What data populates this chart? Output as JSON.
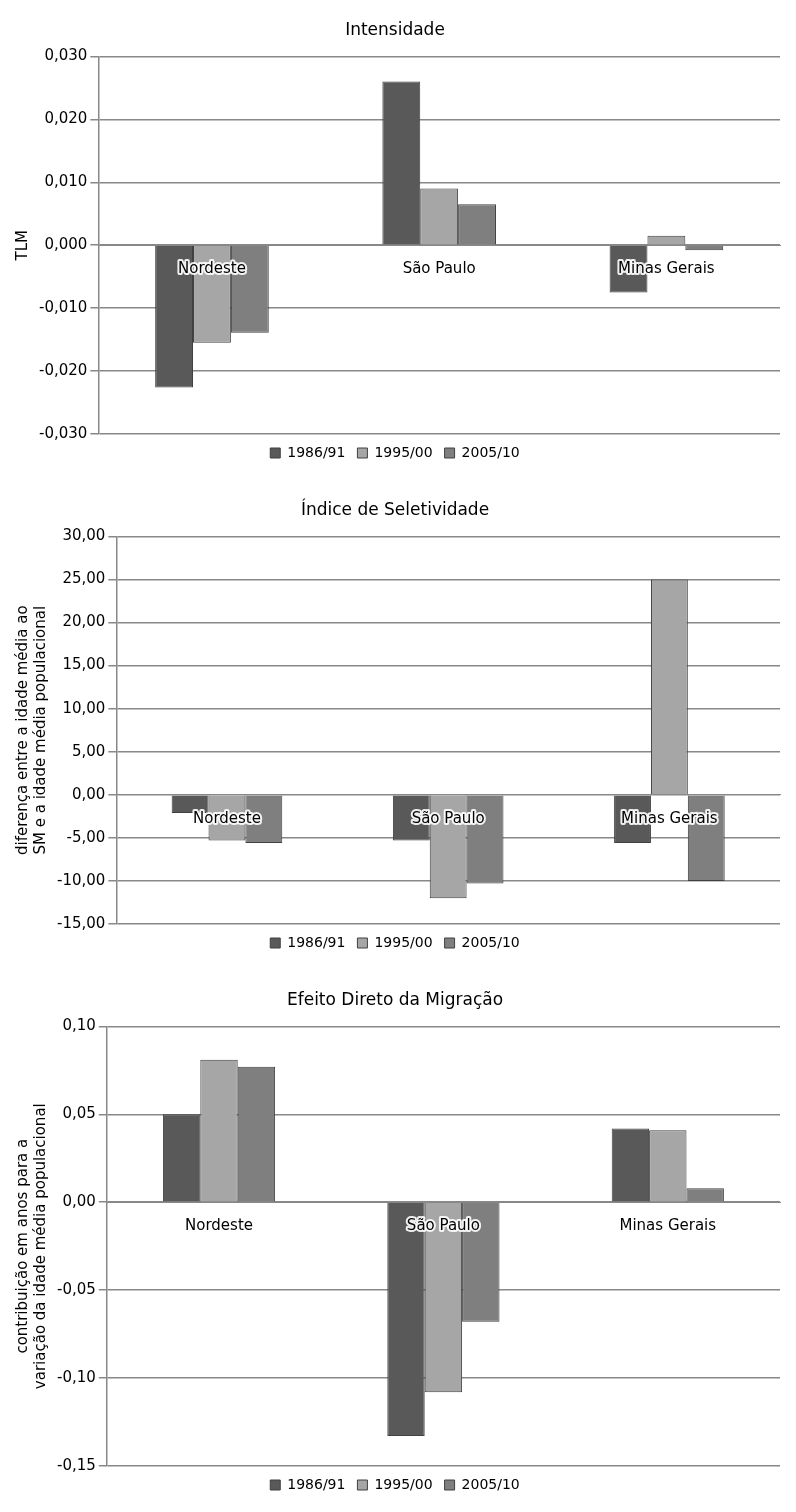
{
  "chart_data": [
    {
      "type": "bar",
      "title": "Intensidade",
      "ylabel": "TLM",
      "categories": [
        "Nordeste",
        "São Paulo",
        "Minas Gerais"
      ],
      "series": [
        {
          "name": "1986/91",
          "color": "#595959",
          "values": [
            -0.0226,
            0.026,
            -0.0075
          ]
        },
        {
          "name": "1995/00",
          "color": "#a6a6a6",
          "values": [
            -0.0155,
            0.009,
            0.0015
          ]
        },
        {
          "name": "2005/10",
          "color": "#7f7f7f",
          "values": [
            -0.0139,
            0.0065,
            -0.0008
          ]
        }
      ],
      "ylim": [
        -0.03,
        0.03
      ],
      "yticks": [
        {
          "value": -0.03,
          "label": "-0,030"
        },
        {
          "value": -0.02,
          "label": "-0,020"
        },
        {
          "value": -0.01,
          "label": "-0,010"
        },
        {
          "value": 0,
          "label": "0,000"
        },
        {
          "value": 0.01,
          "label": "0,010"
        },
        {
          "value": 0.02,
          "label": "0,020"
        },
        {
          "value": 0.03,
          "label": "0,030"
        }
      ],
      "grid": "y",
      "legend": "bottom"
    },
    {
      "type": "bar",
      "title": "Índice de Seletividade",
      "ylabel": "diferença entre a idade média ao SM e a idade média populacional",
      "categories": [
        "Nordeste",
        "São Paulo",
        "Minas Gerais"
      ],
      "series": [
        {
          "name": "1986/91",
          "color": "#595959",
          "values": [
            -2.1,
            -5.3,
            -5.6
          ]
        },
        {
          "name": "1995/00",
          "color": "#a6a6a6",
          "values": [
            -5.3,
            -12.0,
            25.0
          ]
        },
        {
          "name": "2005/10",
          "color": "#7f7f7f",
          "values": [
            -5.6,
            -10.3,
            -10.0
          ]
        }
      ],
      "ylim": [
        -15,
        30
      ],
      "yticks": [
        {
          "value": -15,
          "label": "-15,00"
        },
        {
          "value": -10,
          "label": "-10,00"
        },
        {
          "value": -5,
          "label": "-5,00"
        },
        {
          "value": 0,
          "label": "0,00"
        },
        {
          "value": 5,
          "label": "5,00"
        },
        {
          "value": 10,
          "label": "10,00"
        },
        {
          "value": 15,
          "label": "15,00"
        },
        {
          "value": 20,
          "label": "20,00"
        },
        {
          "value": 25,
          "label": "25,00"
        },
        {
          "value": 30,
          "label": "30,00"
        }
      ],
      "grid": "y",
      "legend": "bottom"
    },
    {
      "type": "bar",
      "title": "Efeito Direto da Migração",
      "ylabel": "contribuição em anos para a variação da idade média populacional",
      "categories": [
        "Nordeste",
        "São Paulo",
        "Minas Gerais"
      ],
      "series": [
        {
          "name": "1986/91",
          "color": "#595959",
          "values": [
            0.05,
            -0.133,
            0.042
          ]
        },
        {
          "name": "1995/00",
          "color": "#a6a6a6",
          "values": [
            0.081,
            -0.108,
            0.041
          ]
        },
        {
          "name": "2005/10",
          "color": "#7f7f7f",
          "values": [
            0.077,
            -0.068,
            0.008
          ]
        }
      ],
      "ylim": [
        -0.15,
        0.1
      ],
      "yticks": [
        {
          "value": -0.15,
          "label": "-0,15"
        },
        {
          "value": -0.1,
          "label": "-0,10"
        },
        {
          "value": -0.05,
          "label": "-0,05"
        },
        {
          "value": 0,
          "label": "0,00"
        },
        {
          "value": 0.05,
          "label": "0,05"
        },
        {
          "value": 0.1,
          "label": "0,10"
        }
      ],
      "grid": "y",
      "legend": "bottom"
    }
  ]
}
